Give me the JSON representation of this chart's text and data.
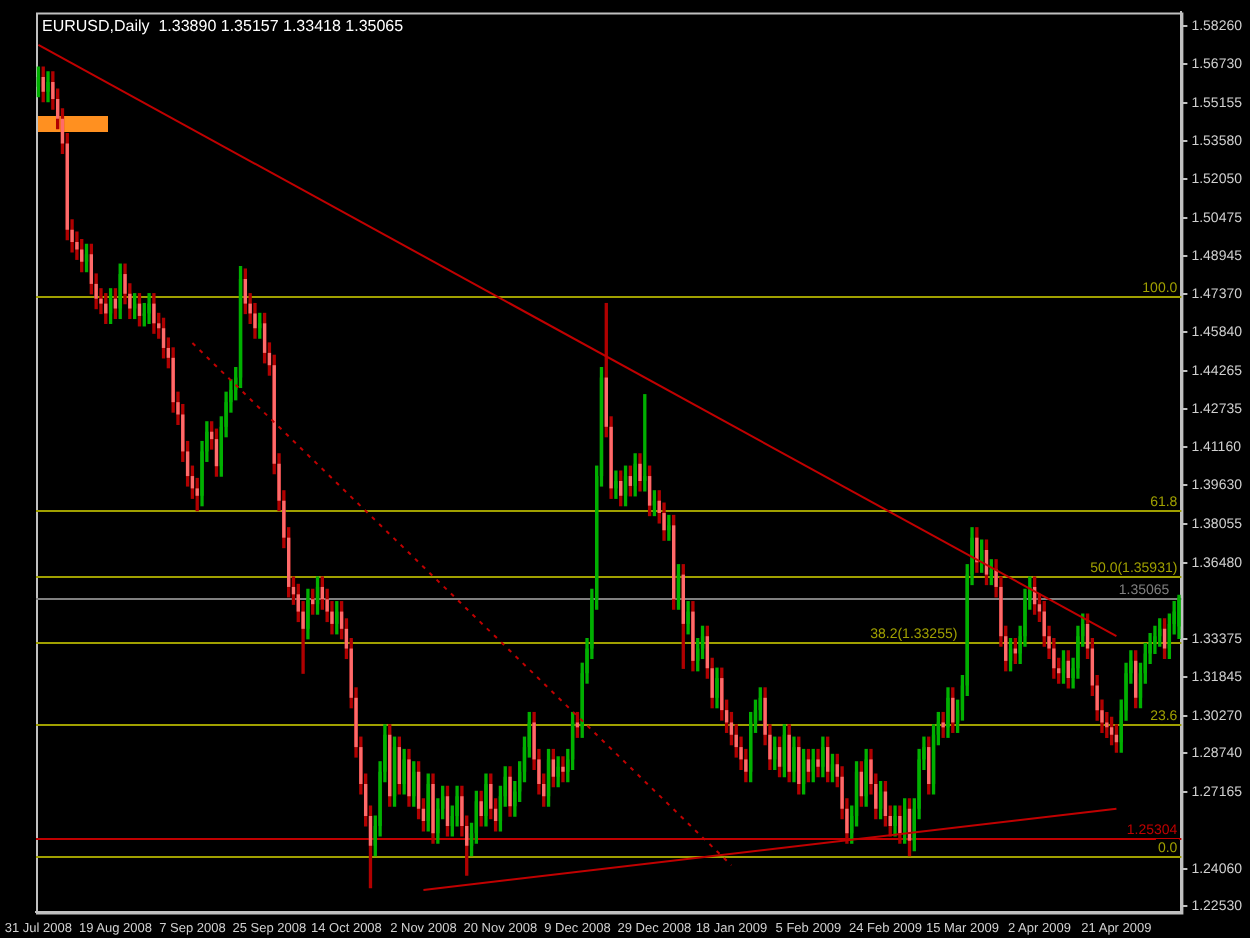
{
  "chart_data": {
    "type": "candlestick",
    "title": "EURUSD,Daily  1.33890 1.35157 1.33418 1.35065",
    "categories": [
      "31 Jul 2008",
      null,
      null,
      null,
      null,
      null,
      null,
      null,
      null,
      null,
      null,
      null,
      null,
      null,
      null,
      null,
      "19 Aug 2008",
      null,
      null,
      null,
      null,
      null,
      null,
      null,
      null,
      null,
      null,
      null,
      null,
      null,
      null,
      null,
      "7 Sep 2008",
      null,
      null,
      null,
      null,
      null,
      null,
      null,
      null,
      null,
      null,
      null,
      null,
      null,
      null,
      null,
      "25 Sep 2008",
      null,
      null,
      null,
      null,
      null,
      null,
      null,
      null,
      null,
      null,
      null,
      null,
      null,
      null,
      null,
      "14 Oct 2008",
      null,
      null,
      null,
      null,
      null,
      null,
      null,
      null,
      null,
      null,
      null,
      null,
      null,
      null,
      null,
      "2 Nov 2008",
      null,
      null,
      null,
      null,
      null,
      null,
      null,
      null,
      null,
      null,
      null,
      null,
      null,
      null,
      null,
      "20 Nov 2008",
      null,
      null,
      null,
      null,
      null,
      null,
      null,
      null,
      null,
      null,
      null,
      null,
      null,
      null,
      null,
      "9 Dec 2008",
      null,
      null,
      null,
      null,
      null,
      null,
      null,
      null,
      null,
      null,
      null,
      null,
      null,
      null,
      null,
      "29 Dec 2008",
      null,
      null,
      null,
      null,
      null,
      null,
      null,
      null,
      null,
      null,
      null,
      null,
      null,
      null,
      null,
      "18 Jan 2009",
      null,
      null,
      null,
      null,
      null,
      null,
      null,
      null,
      null,
      null,
      null,
      null,
      null,
      null,
      null,
      "5 Feb 2009",
      null,
      null,
      null,
      null,
      null,
      null,
      null,
      null,
      null,
      null,
      null,
      null,
      null,
      null,
      null,
      "24 Feb 2009",
      null,
      null,
      null,
      null,
      null,
      null,
      null,
      null,
      null,
      null,
      null,
      null,
      null,
      null,
      null,
      "15 Mar 2009",
      null,
      null,
      null,
      null,
      null,
      null,
      null,
      null,
      null,
      null,
      null,
      null,
      null,
      null,
      null,
      "2 Apr 2009",
      null,
      null,
      null,
      null,
      null,
      null,
      null,
      null,
      null,
      null,
      null,
      null,
      null,
      null,
      null,
      "21 Apr 2009",
      null,
      null,
      null,
      null,
      null,
      null,
      null,
      null,
      null,
      null,
      null,
      null,
      null
    ],
    "ohlc": [
      [
        1.558,
        1.566,
        1.554,
        1.562
      ],
      [
        1.562,
        1.566,
        1.552,
        1.556
      ],
      [
        1.556,
        1.564,
        1.552,
        1.56
      ],
      [
        1.56,
        1.564,
        1.549,
        1.553
      ],
      [
        1.553,
        1.557,
        1.541,
        1.545
      ],
      [
        1.545,
        1.549,
        1.531,
        1.535
      ],
      [
        1.535,
        1.539,
        1.496,
        1.5
      ],
      [
        1.5,
        1.504,
        1.491,
        1.495
      ],
      [
        1.495,
        1.499,
        1.488,
        1.492
      ],
      [
        1.492,
        1.496,
        1.483,
        1.487
      ],
      [
        1.487,
        1.494,
        1.483,
        1.49
      ],
      [
        1.49,
        1.494,
        1.474,
        1.478
      ],
      [
        1.478,
        1.482,
        1.468,
        1.472
      ],
      [
        1.472,
        1.476,
        1.466,
        1.47
      ],
      [
        1.47,
        1.474,
        1.462,
        1.466
      ],
      [
        1.466,
        1.476,
        1.462,
        1.472
      ],
      [
        1.472,
        1.476,
        1.464,
        1.468
      ],
      [
        1.468,
        1.486,
        1.464,
        1.482
      ],
      [
        1.482,
        1.486,
        1.47,
        1.474
      ],
      [
        1.474,
        1.478,
        1.464,
        1.468
      ],
      [
        1.468,
        1.474,
        1.464,
        1.47
      ],
      [
        1.47,
        1.474,
        1.461,
        1.465
      ],
      [
        1.465,
        1.47,
        1.461,
        1.466
      ],
      [
        1.466,
        1.474,
        1.462,
        1.47
      ],
      [
        1.47,
        1.474,
        1.458,
        1.462
      ],
      [
        1.462,
        1.466,
        1.456,
        1.46
      ],
      [
        1.46,
        1.464,
        1.448,
        1.452
      ],
      [
        1.452,
        1.456,
        1.444,
        1.448
      ],
      [
        1.448,
        1.452,
        1.426,
        1.43
      ],
      [
        1.43,
        1.434,
        1.421,
        1.425
      ],
      [
        1.425,
        1.429,
        1.406,
        1.41
      ],
      [
        1.41,
        1.414,
        1.396,
        1.4
      ],
      [
        1.4,
        1.404,
        1.391,
        1.395
      ],
      [
        1.395,
        1.399,
        1.386,
        1.392
      ],
      [
        1.392,
        1.414,
        1.388,
        1.41
      ],
      [
        1.41,
        1.422,
        1.406,
        1.418
      ],
      [
        1.418,
        1.422,
        1.411,
        1.415
      ],
      [
        1.415,
        1.419,
        1.4,
        1.404
      ],
      [
        1.404,
        1.424,
        1.4,
        1.42
      ],
      [
        1.42,
        1.434,
        1.416,
        1.43
      ],
      [
        1.43,
        1.439,
        1.426,
        1.435
      ],
      [
        1.435,
        1.444,
        1.431,
        1.44
      ],
      [
        1.44,
        1.485,
        1.436,
        1.48
      ],
      [
        1.48,
        1.484,
        1.466,
        1.47
      ],
      [
        1.47,
        1.474,
        1.462,
        1.466
      ],
      [
        1.466,
        1.47,
        1.456,
        1.46
      ],
      [
        1.46,
        1.466,
        1.456,
        1.462
      ],
      [
        1.462,
        1.466,
        1.446,
        1.45
      ],
      [
        1.45,
        1.454,
        1.441,
        1.445
      ],
      [
        1.445,
        1.449,
        1.401,
        1.405
      ],
      [
        1.405,
        1.409,
        1.386,
        1.39
      ],
      [
        1.39,
        1.394,
        1.371,
        1.375
      ],
      [
        1.375,
        1.379,
        1.351,
        1.355
      ],
      [
        1.355,
        1.359,
        1.348,
        1.352
      ],
      [
        1.352,
        1.356,
        1.341,
        1.345
      ],
      [
        1.345,
        1.349,
        1.32,
        1.338
      ],
      [
        1.338,
        1.354,
        1.334,
        1.35
      ],
      [
        1.35,
        1.354,
        1.344,
        1.348
      ],
      [
        1.348,
        1.359,
        1.344,
        1.355
      ],
      [
        1.355,
        1.359,
        1.346,
        1.35
      ],
      [
        1.35,
        1.354,
        1.341,
        1.345
      ],
      [
        1.345,
        1.349,
        1.336,
        1.34
      ],
      [
        1.34,
        1.349,
        1.336,
        1.345
      ],
      [
        1.345,
        1.349,
        1.334,
        1.338
      ],
      [
        1.338,
        1.342,
        1.326,
        1.33
      ],
      [
        1.33,
        1.334,
        1.306,
        1.31
      ],
      [
        1.31,
        1.314,
        1.286,
        1.29
      ],
      [
        1.29,
        1.294,
        1.271,
        1.275
      ],
      [
        1.275,
        1.279,
        1.258,
        1.262
      ],
      [
        1.262,
        1.266,
        1.233,
        1.25
      ],
      [
        1.25,
        1.262,
        1.246,
        1.258
      ],
      [
        1.258,
        1.284,
        1.254,
        1.28
      ],
      [
        1.28,
        1.299,
        1.276,
        1.295
      ],
      [
        1.295,
        1.299,
        1.266,
        1.27
      ],
      [
        1.27,
        1.294,
        1.266,
        1.29
      ],
      [
        1.29,
        1.294,
        1.271,
        1.275
      ],
      [
        1.275,
        1.289,
        1.271,
        1.285
      ],
      [
        1.285,
        1.289,
        1.266,
        1.27
      ],
      [
        1.27,
        1.284,
        1.266,
        1.28
      ],
      [
        1.28,
        1.284,
        1.261,
        1.265
      ],
      [
        1.265,
        1.269,
        1.256,
        1.26
      ],
      [
        1.26,
        1.279,
        1.256,
        1.275
      ],
      [
        1.275,
        1.279,
        1.251,
        1.255
      ],
      [
        1.255,
        1.269,
        1.251,
        1.265
      ],
      [
        1.265,
        1.274,
        1.261,
        1.27
      ],
      [
        1.27,
        1.274,
        1.254,
        1.258
      ],
      [
        1.258,
        1.266,
        1.254,
        1.262
      ],
      [
        1.262,
        1.274,
        1.258,
        1.27
      ],
      [
        1.27,
        1.274,
        1.254,
        1.258
      ],
      [
        1.258,
        1.262,
        1.238,
        1.25
      ],
      [
        1.25,
        1.259,
        1.246,
        1.255
      ],
      [
        1.255,
        1.272,
        1.251,
        1.268
      ],
      [
        1.268,
        1.272,
        1.258,
        1.262
      ],
      [
        1.262,
        1.279,
        1.258,
        1.275
      ],
      [
        1.275,
        1.279,
        1.261,
        1.265
      ],
      [
        1.265,
        1.269,
        1.256,
        1.26
      ],
      [
        1.26,
        1.274,
        1.256,
        1.27
      ],
      [
        1.27,
        1.282,
        1.266,
        1.278
      ],
      [
        1.278,
        1.282,
        1.262,
        1.266
      ],
      [
        1.266,
        1.276,
        1.262,
        1.272
      ],
      [
        1.272,
        1.284,
        1.268,
        1.28
      ],
      [
        1.28,
        1.294,
        1.276,
        1.29
      ],
      [
        1.29,
        1.304,
        1.286,
        1.3
      ],
      [
        1.3,
        1.304,
        1.281,
        1.285
      ],
      [
        1.285,
        1.289,
        1.271,
        1.275
      ],
      [
        1.275,
        1.279,
        1.266,
        1.27
      ],
      [
        1.27,
        1.289,
        1.266,
        1.285
      ],
      [
        1.285,
        1.289,
        1.274,
        1.278
      ],
      [
        1.278,
        1.286,
        1.274,
        1.282
      ],
      [
        1.282,
        1.286,
        1.276,
        1.28
      ],
      [
        1.28,
        1.289,
        1.276,
        1.285
      ],
      [
        1.285,
        1.304,
        1.281,
        1.3
      ],
      [
        1.3,
        1.304,
        1.294,
        1.298
      ],
      [
        1.298,
        1.324,
        1.294,
        1.32
      ],
      [
        1.32,
        1.334,
        1.316,
        1.33
      ],
      [
        1.33,
        1.354,
        1.326,
        1.35
      ],
      [
        1.35,
        1.404,
        1.346,
        1.4
      ],
      [
        1.4,
        1.444,
        1.396,
        1.44
      ],
      [
        1.44,
        1.47,
        1.416,
        1.42
      ],
      [
        1.42,
        1.424,
        1.391,
        1.395
      ],
      [
        1.395,
        1.402,
        1.391,
        1.398
      ],
      [
        1.398,
        1.402,
        1.388,
        1.392
      ],
      [
        1.392,
        1.404,
        1.388,
        1.4
      ],
      [
        1.4,
        1.404,
        1.392,
        1.396
      ],
      [
        1.396,
        1.409,
        1.392,
        1.405
      ],
      [
        1.405,
        1.409,
        1.394,
        1.398
      ],
      [
        1.398,
        1.433,
        1.394,
        1.4
      ],
      [
        1.4,
        1.404,
        1.384,
        1.388
      ],
      [
        1.388,
        1.394,
        1.384,
        1.39
      ],
      [
        1.39,
        1.394,
        1.381,
        1.385
      ],
      [
        1.385,
        1.389,
        1.374,
        1.378
      ],
      [
        1.378,
        1.384,
        1.374,
        1.38
      ],
      [
        1.38,
        1.384,
        1.346,
        1.35
      ],
      [
        1.35,
        1.364,
        1.346,
        1.36
      ],
      [
        1.36,
        1.364,
        1.322,
        1.34
      ],
      [
        1.34,
        1.349,
        1.336,
        1.345
      ],
      [
        1.345,
        1.349,
        1.321,
        1.325
      ],
      [
        1.325,
        1.334,
        1.321,
        1.33
      ],
      [
        1.33,
        1.339,
        1.326,
        1.335
      ],
      [
        1.335,
        1.339,
        1.318,
        1.322
      ],
      [
        1.322,
        1.326,
        1.306,
        1.31
      ],
      [
        1.31,
        1.322,
        1.306,
        1.318
      ],
      [
        1.318,
        1.322,
        1.301,
        1.305
      ],
      [
        1.305,
        1.309,
        1.296,
        1.3
      ],
      [
        1.3,
        1.304,
        1.291,
        1.295
      ],
      [
        1.295,
        1.299,
        1.286,
        1.29
      ],
      [
        1.29,
        1.294,
        1.281,
        1.285
      ],
      [
        1.285,
        1.289,
        1.276,
        1.28
      ],
      [
        1.28,
        1.304,
        1.276,
        1.3
      ],
      [
        1.3,
        1.309,
        1.296,
        1.305
      ],
      [
        1.305,
        1.314,
        1.301,
        1.31
      ],
      [
        1.31,
        1.314,
        1.291,
        1.295
      ],
      [
        1.295,
        1.299,
        1.281,
        1.285
      ],
      [
        1.285,
        1.294,
        1.281,
        1.29
      ],
      [
        1.29,
        1.294,
        1.278,
        1.282
      ],
      [
        1.282,
        1.299,
        1.278,
        1.295
      ],
      [
        1.295,
        1.299,
        1.276,
        1.28
      ],
      [
        1.28,
        1.294,
        1.276,
        1.29
      ],
      [
        1.29,
        1.294,
        1.271,
        1.275
      ],
      [
        1.275,
        1.289,
        1.271,
        1.285
      ],
      [
        1.285,
        1.289,
        1.276,
        1.28
      ],
      [
        1.28,
        1.289,
        1.276,
        1.285
      ],
      [
        1.285,
        1.289,
        1.278,
        1.282
      ],
      [
        1.282,
        1.294,
        1.278,
        1.29
      ],
      [
        1.29,
        1.294,
        1.276,
        1.28
      ],
      [
        1.28,
        1.287,
        1.276,
        1.283
      ],
      [
        1.283,
        1.287,
        1.274,
        1.278
      ],
      [
        1.278,
        1.282,
        1.261,
        1.265
      ],
      [
        1.265,
        1.269,
        1.251,
        1.255
      ],
      [
        1.255,
        1.266,
        1.251,
        1.262
      ],
      [
        1.262,
        1.284,
        1.258,
        1.28
      ],
      [
        1.28,
        1.284,
        1.266,
        1.27
      ],
      [
        1.27,
        1.289,
        1.266,
        1.285
      ],
      [
        1.285,
        1.289,
        1.271,
        1.275
      ],
      [
        1.275,
        1.279,
        1.261,
        1.265
      ],
      [
        1.265,
        1.276,
        1.261,
        1.272
      ],
      [
        1.272,
        1.276,
        1.258,
        1.262
      ],
      [
        1.262,
        1.266,
        1.254,
        1.258
      ],
      [
        1.258,
        1.266,
        1.254,
        1.262
      ],
      [
        1.262,
        1.266,
        1.251,
        1.255
      ],
      [
        1.255,
        1.269,
        1.251,
        1.265
      ],
      [
        1.265,
        1.269,
        1.246,
        1.252
      ],
      [
        1.252,
        1.269,
        1.248,
        1.265
      ],
      [
        1.265,
        1.289,
        1.261,
        1.285
      ],
      [
        1.285,
        1.294,
        1.281,
        1.29
      ],
      [
        1.29,
        1.294,
        1.271,
        1.275
      ],
      [
        1.275,
        1.299,
        1.271,
        1.295
      ],
      [
        1.295,
        1.304,
        1.291,
        1.3
      ],
      [
        1.3,
        1.304,
        1.294,
        1.298
      ],
      [
        1.298,
        1.314,
        1.294,
        1.31
      ],
      [
        1.31,
        1.314,
        1.296,
        1.3
      ],
      [
        1.3,
        1.309,
        1.296,
        1.305
      ],
      [
        1.305,
        1.319,
        1.301,
        1.315
      ],
      [
        1.315,
        1.364,
        1.311,
        1.36
      ],
      [
        1.36,
        1.379,
        1.356,
        1.375
      ],
      [
        1.375,
        1.379,
        1.361,
        1.365
      ],
      [
        1.365,
        1.374,
        1.361,
        1.37
      ],
      [
        1.37,
        1.374,
        1.356,
        1.36
      ],
      [
        1.36,
        1.366,
        1.356,
        1.362
      ],
      [
        1.362,
        1.366,
        1.351,
        1.355
      ],
      [
        1.355,
        1.359,
        1.331,
        1.335
      ],
      [
        1.335,
        1.339,
        1.321,
        1.325
      ],
      [
        1.325,
        1.334,
        1.321,
        1.33
      ],
      [
        1.33,
        1.334,
        1.324,
        1.328
      ],
      [
        1.328,
        1.339,
        1.324,
        1.335
      ],
      [
        1.335,
        1.354,
        1.331,
        1.35
      ],
      [
        1.35,
        1.359,
        1.346,
        1.355
      ],
      [
        1.355,
        1.359,
        1.344,
        1.348
      ],
      [
        1.348,
        1.352,
        1.341,
        1.345
      ],
      [
        1.345,
        1.349,
        1.331,
        1.335
      ],
      [
        1.335,
        1.339,
        1.326,
        1.33
      ],
      [
        1.33,
        1.334,
        1.318,
        1.322
      ],
      [
        1.322,
        1.326,
        1.316,
        1.32
      ],
      [
        1.32,
        1.329,
        1.316,
        1.325
      ],
      [
        1.325,
        1.329,
        1.314,
        1.318
      ],
      [
        1.318,
        1.326,
        1.314,
        1.322
      ],
      [
        1.322,
        1.339,
        1.318,
        1.335
      ],
      [
        1.335,
        1.344,
        1.331,
        1.34
      ],
      [
        1.34,
        1.344,
        1.326,
        1.33
      ],
      [
        1.33,
        1.334,
        1.311,
        1.315
      ],
      [
        1.315,
        1.319,
        1.301,
        1.305
      ],
      [
        1.305,
        1.309,
        1.296,
        1.3
      ],
      [
        1.3,
        1.304,
        1.294,
        1.298
      ],
      [
        1.298,
        1.302,
        1.291,
        1.295
      ],
      [
        1.295,
        1.299,
        1.288,
        1.292
      ],
      [
        1.292,
        1.309,
        1.288,
        1.305
      ],
      [
        1.305,
        1.324,
        1.301,
        1.32
      ],
      [
        1.32,
        1.329,
        1.316,
        1.325
      ],
      [
        1.325,
        1.329,
        1.306,
        1.31
      ],
      [
        1.31,
        1.324,
        1.306,
        1.32
      ],
      [
        1.32,
        1.332,
        1.316,
        1.328
      ],
      [
        1.328,
        1.336,
        1.324,
        1.332
      ],
      [
        1.332,
        1.339,
        1.328,
        1.335
      ],
      [
        1.335,
        1.342,
        1.331,
        1.338
      ],
      [
        1.338,
        1.342,
        1.326,
        1.33
      ],
      [
        1.33,
        1.344,
        1.326,
        1.34
      ],
      [
        1.34,
        1.349,
        1.336,
        1.345
      ],
      [
        1.3389,
        1.35157,
        1.33418,
        1.35065
      ]
    ],
    "series": [
      {
        "type": "line",
        "color": "#c00000",
        "x": [
          "31 Jul 2008",
          "21 Apr 2009"
        ],
        "values": [
          1.575,
          1.335
        ]
      },
      {
        "type": "line",
        "color": "#c00000",
        "line_style": "dotted",
        "x": [
          "7 Sep 2008",
          "18 Jan 2009"
        ],
        "values": [
          1.454,
          1.242
        ]
      },
      {
        "type": "line",
        "color": "#c00000",
        "x": [
          "2 Nov 2008",
          "21 Apr 2009"
        ],
        "values": [
          1.232,
          1.265
        ]
      }
    ],
    "ylim": [
      1.2229,
      1.5882
    ],
    "yticks": [
      {
        "value": 1.5826,
        "label": "1.58260"
      },
      {
        "value": 1.5673,
        "label": "1.56730"
      },
      {
        "value": 1.55155,
        "label": "1.55155"
      },
      {
        "value": 1.5358,
        "label": "1.53580"
      },
      {
        "value": 1.5205,
        "label": "1.52050"
      },
      {
        "value": 1.50475,
        "label": "1.50475"
      },
      {
        "value": 1.48945,
        "label": "1.48945"
      },
      {
        "value": 1.4737,
        "label": "1.47370"
      },
      {
        "value": 1.4584,
        "label": "1.45840"
      },
      {
        "value": 1.44265,
        "label": "1.44265"
      },
      {
        "value": 1.42735,
        "label": "1.42735"
      },
      {
        "value": 1.4116,
        "label": "1.41160"
      },
      {
        "value": 1.3963,
        "label": "1.39630"
      },
      {
        "value": 1.38055,
        "label": "1.38055"
      },
      {
        "value": 1.3648,
        "label": "1.36480"
      },
      {
        "value": 1.33375,
        "label": "1.33375"
      },
      {
        "value": 1.31845,
        "label": "1.31845"
      },
      {
        "value": 1.3027,
        "label": "1.30270"
      },
      {
        "value": 1.2874,
        "label": "1.28740"
      },
      {
        "value": 1.27165,
        "label": "1.27165"
      },
      {
        "value": 1.2406,
        "label": "1.24060"
      },
      {
        "value": 1.2253,
        "label": "1.22530"
      }
    ],
    "ref_lines": [
      {
        "axis": "y",
        "value": 1.4727,
        "color": "#a0a000"
      },
      {
        "axis": "y",
        "value": 1.3861,
        "color": "#a0a000"
      },
      {
        "axis": "y",
        "value": 1.35931,
        "label": "50.0(1.35931)",
        "color": "#a0a000"
      },
      {
        "axis": "y",
        "value": 1.33255,
        "label": "38.2(1.33255)",
        "color": "#a0a000"
      },
      {
        "axis": "y",
        "value": 1.2994,
        "color": "#a0a000"
      },
      {
        "axis": "y",
        "value": 1.2459,
        "color": "#a0a000"
      },
      {
        "axis": "y",
        "value": 1.35065,
        "label": "1.35065",
        "color": "#808080"
      },
      {
        "axis": "y",
        "value": 1.25304,
        "label": "1.25304",
        "color": "#c00000"
      }
    ],
    "annotations": [
      {
        "text": "100.0",
        "y": 1.4727
      },
      {
        "text": "61.8",
        "y": 1.3861
      },
      {
        "text": "23.6",
        "y": 1.2994
      },
      {
        "text": "0.0",
        "y": 1.2459
      }
    ],
    "grid": false,
    "legend": false
  }
}
